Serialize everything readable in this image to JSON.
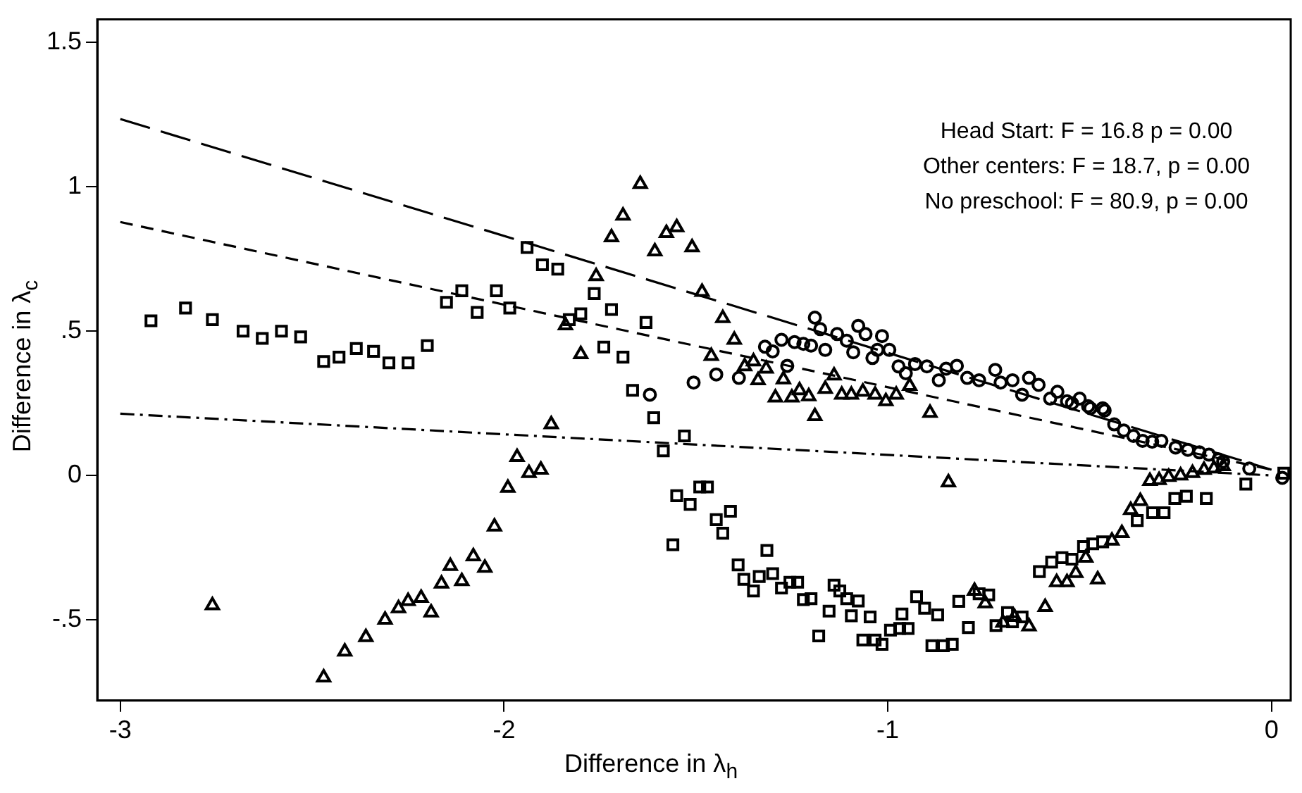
{
  "chart_data": {
    "type": "scatter",
    "xlabel": "Difference in λ$_{h}$",
    "ylabel": "Difference in λ$_{c}$",
    "xlim": [
      -3.06,
      0.05
    ],
    "ylim": [
      -0.78,
      1.58
    ],
    "xticks": [
      -3,
      -2,
      -1,
      0
    ],
    "yticks": [
      {
        "value": -0.5,
        "label": "-.5"
      },
      0,
      {
        "value": 0.5,
        "label": ".5"
      },
      1,
      1.5
    ],
    "grid": false,
    "legend": false,
    "annotations": [
      "Head Start: F = 16.8 p = 0.00",
      "Other centers: F = 18.7, p = 0.00",
      "No preschool: F = 80.9, p = 0.00"
    ],
    "series": [
      {
        "type": "scatter",
        "marker": "circle",
        "color": "#000000",
        "x": [
          -1.62,
          -1.506,
          -1.447,
          -1.388,
          -1.32,
          -1.3,
          -1.277,
          -1.262,
          -1.243,
          -1.22,
          -1.2,
          -1.19,
          -1.176,
          -1.163,
          -1.132,
          -1.107,
          -1.09,
          -1.077,
          -1.058,
          -1.04,
          -1.027,
          -1.015,
          -0.996,
          -0.972,
          -0.953,
          -0.929,
          -0.898,
          -0.867,
          -0.848,
          -0.82,
          -0.793,
          -0.762,
          -0.72,
          -0.706,
          -0.675,
          -0.65,
          -0.632,
          -0.607,
          -0.577,
          -0.558,
          -0.533,
          -0.52,
          -0.5,
          -0.478,
          -0.472,
          -0.44,
          -0.435,
          -0.41,
          -0.385,
          -0.36,
          -0.336,
          -0.311,
          -0.287,
          -0.25,
          -0.218,
          -0.188,
          -0.163,
          -0.138,
          -0.126,
          -0.058,
          0.028
        ],
        "values": [
          0.28,
          0.322,
          0.35,
          0.338,
          0.446,
          0.43,
          0.47,
          0.38,
          0.462,
          0.456,
          0.45,
          0.547,
          0.507,
          0.435,
          0.49,
          0.467,
          0.427,
          0.518,
          0.49,
          0.407,
          0.435,
          0.483,
          0.435,
          0.378,
          0.354,
          0.386,
          0.378,
          0.33,
          0.37,
          0.38,
          0.338,
          0.33,
          0.366,
          0.322,
          0.33,
          0.28,
          0.338,
          0.314,
          0.266,
          0.29,
          0.257,
          0.25,
          0.266,
          0.24,
          0.233,
          0.233,
          0.225,
          0.177,
          0.156,
          0.137,
          0.12,
          0.117,
          0.12,
          0.097,
          0.089,
          0.08,
          0.072,
          0.056,
          0.048,
          0.024,
          -0.008
        ]
      },
      {
        "type": "scatter",
        "marker": "triangle",
        "color": "#000000",
        "x": [
          -2.76,
          -2.47,
          -2.415,
          -2.36,
          -2.31,
          -2.275,
          -2.25,
          -2.216,
          -2.19,
          -2.163,
          -2.14,
          -2.11,
          -2.08,
          -2.05,
          -2.025,
          -1.99,
          -1.966,
          -1.935,
          -1.904,
          -1.877,
          -1.84,
          -1.8,
          -1.76,
          -1.72,
          -1.69,
          -1.645,
          -1.607,
          -1.577,
          -1.55,
          -1.51,
          -1.484,
          -1.46,
          -1.43,
          -1.4,
          -1.373,
          -1.35,
          -1.338,
          -1.317,
          -1.293,
          -1.272,
          -1.25,
          -1.23,
          -1.206,
          -1.19,
          -1.163,
          -1.14,
          -1.12,
          -1.095,
          -1.065,
          -1.033,
          -1.005,
          -0.978,
          -0.943,
          -0.89,
          -0.842,
          -0.774,
          -0.746,
          -0.7,
          -0.67,
          -0.632,
          -0.59,
          -0.56,
          -0.533,
          -0.51,
          -0.484,
          -0.453,
          -0.416,
          -0.39,
          -0.367,
          -0.342,
          -0.317,
          -0.293,
          -0.268,
          -0.237,
          -0.206,
          -0.176,
          -0.15,
          -0.126
        ],
        "values": [
          -0.45,
          -0.7,
          -0.61,
          -0.56,
          -0.5,
          -0.46,
          -0.435,
          -0.424,
          -0.475,
          -0.375,
          -0.314,
          -0.366,
          -0.28,
          -0.32,
          -0.177,
          -0.043,
          0.064,
          0.008,
          0.02,
          0.177,
          0.52,
          0.42,
          0.69,
          0.825,
          0.9,
          1.01,
          0.776,
          0.84,
          0.86,
          0.79,
          0.636,
          0.414,
          0.545,
          0.47,
          0.378,
          0.395,
          0.33,
          0.37,
          0.27,
          0.333,
          0.27,
          0.295,
          0.274,
          0.205,
          0.3,
          0.346,
          0.28,
          0.28,
          0.29,
          0.28,
          0.257,
          0.28,
          0.31,
          0.217,
          -0.024,
          -0.4,
          -0.443,
          -0.51,
          -0.49,
          -0.523,
          -0.456,
          -0.37,
          -0.37,
          -0.338,
          -0.285,
          -0.36,
          -0.226,
          -0.2,
          -0.12,
          -0.089,
          -0.019,
          -0.016,
          -0.005,
          0,
          0.008,
          0.019,
          0.024,
          0.032
        ]
      },
      {
        "type": "scatter",
        "marker": "square",
        "color": "#000000",
        "x": [
          -2.92,
          -2.83,
          -2.76,
          -2.68,
          -2.63,
          -2.58,
          -2.53,
          -2.47,
          -2.43,
          -2.385,
          -2.34,
          -2.3,
          -2.25,
          -2.2,
          -2.15,
          -2.11,
          -2.07,
          -2.02,
          -1.985,
          -1.94,
          -1.9,
          -1.86,
          -1.83,
          -1.8,
          -1.765,
          -1.74,
          -1.72,
          -1.69,
          -1.665,
          -1.63,
          -1.61,
          -1.585,
          -1.56,
          -1.55,
          -1.53,
          -1.515,
          -1.49,
          -1.47,
          -1.447,
          -1.43,
          -1.41,
          -1.39,
          -1.375,
          -1.35,
          -1.335,
          -1.315,
          -1.3,
          -1.277,
          -1.255,
          -1.235,
          -1.22,
          -1.2,
          -1.18,
          -1.153,
          -1.14,
          -1.125,
          -1.107,
          -1.095,
          -1.077,
          -1.065,
          -1.046,
          -1.033,
          -1.015,
          -0.993,
          -0.969,
          -0.963,
          -0.947,
          -0.925,
          -0.904,
          -0.885,
          -0.87,
          -0.855,
          -0.832,
          -0.815,
          -0.79,
          -0.762,
          -0.737,
          -0.718,
          -0.688,
          -0.675,
          -0.65,
          -0.605,
          -0.573,
          -0.546,
          -0.52,
          -0.49,
          -0.466,
          -0.44,
          -0.35,
          -0.31,
          -0.28,
          -0.252,
          -0.222,
          -0.17,
          -0.067,
          0.032
        ],
        "values": [
          0.536,
          0.58,
          0.54,
          0.5,
          0.475,
          0.5,
          0.48,
          0.395,
          0.41,
          0.44,
          0.43,
          0.39,
          0.39,
          0.45,
          0.6,
          0.64,
          0.565,
          0.64,
          0.58,
          0.79,
          0.73,
          0.715,
          0.54,
          0.56,
          0.63,
          0.445,
          0.575,
          0.41,
          0.295,
          0.53,
          0.2,
          0.085,
          -0.24,
          -0.07,
          0.137,
          -0.1,
          -0.04,
          -0.04,
          -0.153,
          -0.2,
          -0.124,
          -0.31,
          -0.36,
          -0.4,
          -0.35,
          -0.26,
          -0.34,
          -0.39,
          -0.37,
          -0.37,
          -0.43,
          -0.427,
          -0.556,
          -0.47,
          -0.38,
          -0.4,
          -0.427,
          -0.486,
          -0.435,
          -0.57,
          -0.49,
          -0.57,
          -0.585,
          -0.536,
          -0.53,
          -0.48,
          -0.53,
          -0.42,
          -0.46,
          -0.59,
          -0.483,
          -0.59,
          -0.585,
          -0.436,
          -0.527,
          -0.41,
          -0.414,
          -0.52,
          -0.475,
          -0.507,
          -0.49,
          -0.333,
          -0.3,
          -0.285,
          -0.29,
          -0.246,
          -0.237,
          -0.23,
          -0.156,
          -0.129,
          -0.129,
          -0.08,
          -0.072,
          -0.08,
          -0.03,
          0.008
        ]
      },
      {
        "type": "line",
        "color": "#000000",
        "line_style": "longdash",
        "x": [
          -3,
          0
        ],
        "values": [
          1.235,
          0.02
        ]
      },
      {
        "type": "line",
        "color": "#000000",
        "line_style": "dashed",
        "x": [
          -3,
          0
        ],
        "values": [
          0.878,
          0.02
        ]
      },
      {
        "type": "line",
        "color": "#000000",
        "line_style": "dashdot",
        "x": [
          -3,
          0
        ],
        "values": [
          0.214,
          0.0
        ]
      }
    ]
  }
}
